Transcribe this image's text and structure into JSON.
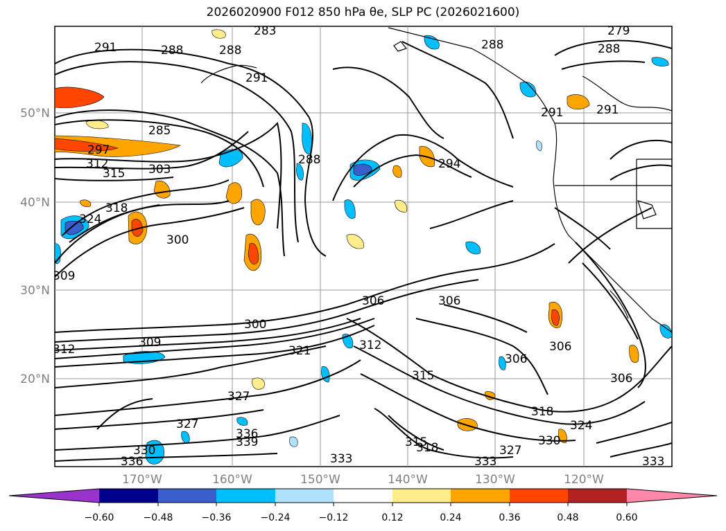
{
  "title": "2026020900 F012 850 hPa θe, SLP PC (2026021600)",
  "map": {
    "lat_ticks": [
      "50°N",
      "40°N",
      "30°N",
      "20°N"
    ],
    "lon_ticks": [
      "170°W",
      "160°W",
      "150°W",
      "140°W",
      "130°W",
      "120°W"
    ],
    "contour_labels": [
      "291",
      "288",
      "288",
      "283",
      "279",
      "288",
      "288",
      "291",
      "285",
      "297",
      "312",
      "315",
      "303",
      "324",
      "318",
      "300",
      "309",
      "288",
      "294",
      "291",
      "291",
      "306",
      "306",
      "300",
      "312",
      "309",
      "321",
      "312",
      "306",
      "306",
      "315",
      "318",
      "327",
      "327",
      "324",
      "336",
      "339",
      "330",
      "336",
      "333",
      "315",
      "318",
      "330",
      "327",
      "333",
      "333",
      "306"
    ]
  },
  "colorbar": {
    "tick_labels": [
      "−0.60",
      "−0.48",
      "−0.36",
      "−0.24",
      "−0.12",
      "0.12",
      "0.24",
      "0.36",
      "0.48",
      "0.60"
    ],
    "colors": [
      "#9933cc",
      "#00008b",
      "#3a5fcd",
      "#00bfff",
      "#b0e2ff",
      "#ffffff",
      "#ffec8b",
      "#ffa500",
      "#ff4500",
      "#b22222",
      "#ff88aa"
    ]
  }
}
